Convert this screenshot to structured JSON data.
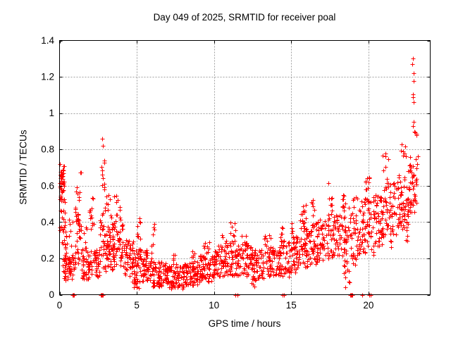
{
  "chart_data": {
    "type": "scatter",
    "title": "Day 049 of 2025, SRMTID for receiver poal",
    "xlabel": "GPS time / hours",
    "ylabel": "SRMTID / TECUs",
    "xlim": [
      0,
      24
    ],
    "ylim": [
      0,
      1.4
    ],
    "xticks": [
      0,
      5,
      10,
      15,
      20
    ],
    "xtick_labels": [
      "0",
      "5",
      "10",
      "15",
      "20"
    ],
    "yticks": [
      0,
      0.2,
      0.4,
      0.6,
      0.8,
      1.0,
      1.2,
      1.4
    ],
    "ytick_labels": [
      "0",
      "0.2",
      "0.4",
      "0.6",
      "0.8",
      "1",
      "1.2",
      "1.4"
    ],
    "grid": true,
    "legend": false,
    "series_name": "SRMTID",
    "marker": {
      "shape": "plus",
      "color": "#ff0000",
      "size": 7
    },
    "sample_interval_hours": 0.008333,
    "point_clusters": [
      [
        0.0,
        0.35,
        0.35,
        0.72,
        42
      ],
      [
        0.05,
        0.3,
        0.6,
        0.72,
        14
      ],
      [
        0.15,
        0.6,
        0.12,
        0.35,
        26
      ],
      [
        0.3,
        1.0,
        0.08,
        0.22,
        46
      ],
      [
        0.6,
        0.85,
        0.25,
        0.45,
        6
      ],
      [
        1.0,
        1.4,
        0.15,
        0.45,
        36
      ],
      [
        1.0,
        1.35,
        0.45,
        0.62,
        9
      ],
      [
        1.3,
        1.45,
        0.62,
        0.68,
        2
      ],
      [
        1.4,
        2.0,
        0.08,
        0.25,
        48
      ],
      [
        1.55,
        1.8,
        0.25,
        0.4,
        6
      ],
      [
        1.95,
        2.25,
        0.25,
        0.55,
        14
      ],
      [
        2.0,
        2.6,
        0.1,
        0.25,
        40
      ],
      [
        2.6,
        2.95,
        0.15,
        0.5,
        26
      ],
      [
        2.7,
        2.9,
        0.5,
        0.86,
        11
      ],
      [
        2.9,
        3.5,
        0.12,
        0.35,
        46
      ],
      [
        3.0,
        3.4,
        0.35,
        0.55,
        10
      ],
      [
        3.4,
        4.1,
        0.15,
        0.4,
        56
      ],
      [
        3.5,
        4.05,
        0.4,
        0.55,
        12
      ],
      [
        4.1,
        4.8,
        0.1,
        0.3,
        50
      ],
      [
        4.6,
        5.2,
        0.03,
        0.1,
        10
      ],
      [
        4.8,
        5.3,
        0.06,
        0.25,
        40
      ],
      [
        5.0,
        5.25,
        0.28,
        0.45,
        8
      ],
      [
        5.3,
        6.0,
        0.07,
        0.25,
        55
      ],
      [
        5.9,
        6.15,
        0.25,
        0.4,
        6
      ],
      [
        6.0,
        7.0,
        0.04,
        0.18,
        72
      ],
      [
        7.0,
        8.0,
        0.03,
        0.16,
        76
      ],
      [
        7.35,
        7.6,
        0.16,
        0.25,
        6
      ],
      [
        8.0,
        9.0,
        0.05,
        0.18,
        70
      ],
      [
        8.55,
        8.8,
        0.18,
        0.25,
        6
      ],
      [
        9.0,
        10.0,
        0.07,
        0.22,
        70
      ],
      [
        9.3,
        9.8,
        0.22,
        0.3,
        8
      ],
      [
        10.0,
        10.7,
        0.1,
        0.25,
        50
      ],
      [
        10.3,
        10.6,
        0.25,
        0.33,
        5
      ],
      [
        10.7,
        11.5,
        0.1,
        0.3,
        56
      ],
      [
        11.0,
        11.45,
        0.3,
        0.42,
        8
      ],
      [
        11.5,
        12.4,
        0.1,
        0.28,
        60
      ],
      [
        11.8,
        12.1,
        0.28,
        0.35,
        5
      ],
      [
        12.4,
        12.7,
        0.04,
        0.1,
        8
      ],
      [
        12.4,
        13.3,
        0.08,
        0.25,
        58
      ],
      [
        13.2,
        13.7,
        0.25,
        0.34,
        10
      ],
      [
        13.3,
        14.2,
        0.1,
        0.26,
        55
      ],
      [
        14.2,
        15.0,
        0.1,
        0.3,
        55
      ],
      [
        14.2,
        14.45,
        0.3,
        0.37,
        5
      ],
      [
        15.0,
        15.5,
        0.12,
        0.32,
        40
      ],
      [
        15.0,
        15.15,
        0.32,
        0.42,
        5
      ],
      [
        15.5,
        16.1,
        0.15,
        0.42,
        46
      ],
      [
        15.6,
        16.0,
        0.42,
        0.5,
        8
      ],
      [
        16.1,
        16.7,
        0.15,
        0.4,
        46
      ],
      [
        16.2,
        16.55,
        0.42,
        0.53,
        6
      ],
      [
        16.7,
        17.4,
        0.18,
        0.42,
        46
      ],
      [
        17.4,
        17.7,
        0.45,
        0.63,
        8
      ],
      [
        17.4,
        18.2,
        0.2,
        0.45,
        52
      ],
      [
        18.2,
        18.75,
        0.15,
        0.5,
        40
      ],
      [
        18.3,
        18.6,
        0.5,
        0.56,
        5
      ],
      [
        18.4,
        18.8,
        0.04,
        0.14,
        8
      ],
      [
        18.8,
        19.5,
        0.15,
        0.47,
        46
      ],
      [
        19.0,
        19.3,
        0.47,
        0.55,
        5
      ],
      [
        19.5,
        20.4,
        0.22,
        0.55,
        62
      ],
      [
        19.8,
        20.1,
        0.55,
        0.66,
        9
      ],
      [
        20.4,
        21.0,
        0.25,
        0.55,
        50
      ],
      [
        20.9,
        21.3,
        0.6,
        0.78,
        7
      ],
      [
        21.0,
        21.9,
        0.3,
        0.62,
        56
      ],
      [
        21.3,
        21.55,
        0.25,
        0.3,
        3
      ],
      [
        21.9,
        22.6,
        0.35,
        0.66,
        56
      ],
      [
        22.1,
        22.45,
        0.7,
        0.88,
        8
      ],
      [
        22.35,
        22.55,
        0.28,
        0.33,
        3
      ],
      [
        22.55,
        23.15,
        0.45,
        0.76,
        48
      ],
      [
        22.8,
        22.95,
        0.9,
        1.32,
        9
      ],
      [
        22.95,
        23.2,
        0.75,
        0.9,
        5
      ]
    ],
    "zero_value_marks": [
      [
        0.8,
        0.95,
        3
      ],
      [
        2.62,
        2.82,
        9
      ],
      [
        11.35,
        11.52,
        3
      ],
      [
        14.42,
        14.58,
        3
      ],
      [
        18.8,
        19.0,
        9
      ],
      [
        19.55,
        19.65,
        2
      ],
      [
        20.0,
        20.22,
        4
      ]
    ],
    "notable_points": [
      {
        "x": 2.78,
        "y": 0.86
      },
      {
        "x": 22.86,
        "y": 1.3
      }
    ]
  },
  "colors": {
    "marker": "#ff0000",
    "grid": "#a0a0a0",
    "axis": "#000000",
    "background": "#ffffff",
    "text": "#000000"
  }
}
